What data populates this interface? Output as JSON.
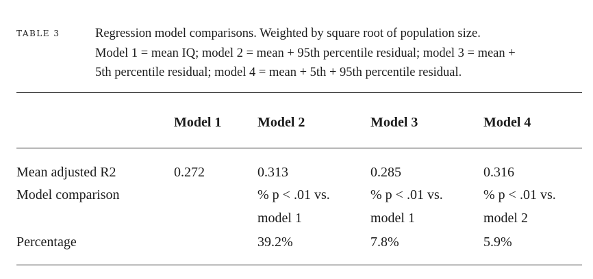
{
  "table": {
    "label": "TABLE 3",
    "caption": {
      "line1": "Regression model comparisons. Weighted by square root of population size.",
      "line2": "Model 1 = mean IQ; model 2 = mean + 95th percentile residual; model 3 = mean +",
      "line3": "5th percentile residual; model 4 = mean + 5th + 95th percentile residual."
    },
    "columns": [
      "Model 1",
      "Model 2",
      "Model 3",
      "Model 4"
    ],
    "rows": [
      {
        "label": "Mean adjusted R2",
        "values": [
          "0.272",
          "0.313",
          "0.285",
          "0.316"
        ]
      },
      {
        "label": "Model comparison",
        "values": [
          "",
          "% p < .01 vs.",
          "% p < .01 vs.",
          "% p < .01 vs."
        ],
        "values_line2": [
          "",
          "model 1",
          "model 1",
          "model 2"
        ]
      },
      {
        "label": "Percentage",
        "values": [
          "",
          "39.2%",
          "7.8%",
          "5.9%"
        ]
      }
    ]
  }
}
